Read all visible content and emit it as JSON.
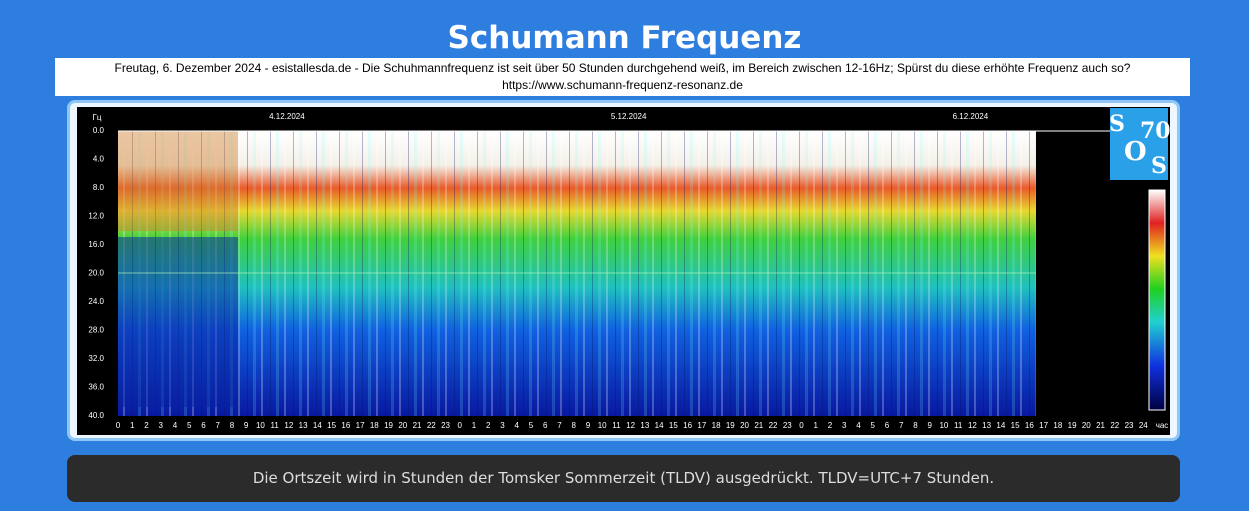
{
  "header": {
    "title": "Schumann Frequenz",
    "info_line": "Freutag, 6. Dezember 2024 - esistallesda.de - Die Schuhmannfrequenz ist seit über 50 Stunden durchgehend weiß, im Bereich zwischen 12-16Hz; Spürst du diese erhöhte Frequenz auch so?",
    "url": "https://www.schumann-frequenz-resonanz.de"
  },
  "spectrogram": {
    "y_unit": "Гц",
    "y_labels": [
      "0.0",
      "4.0",
      "8.0",
      "12.0",
      "16.0",
      "20.0",
      "24.0",
      "28.0",
      "32.0",
      "36.0",
      "40.0"
    ],
    "date_labels": [
      "4.12.2024",
      "5.12.2024",
      "6.12.2024"
    ],
    "x_labels": [
      0,
      1,
      2,
      3,
      4,
      5,
      6,
      7,
      8,
      9,
      10,
      11,
      12,
      13,
      14,
      15,
      16,
      17,
      18,
      19,
      20,
      21,
      22,
      23,
      0,
      1,
      2,
      3,
      4,
      5,
      6,
      7,
      8,
      9,
      10,
      11,
      12,
      13,
      14,
      15,
      16,
      17,
      18,
      19,
      20,
      21,
      22,
      23,
      0,
      1,
      2,
      3,
      4,
      5,
      6,
      7,
      8,
      9,
      10,
      11,
      12,
      13,
      14,
      15,
      16,
      17,
      18,
      19,
      20,
      21,
      22,
      23,
      24
    ],
    "x_unit": "час",
    "logo": [
      "S",
      "70",
      "O",
      "S"
    ]
  },
  "footer": {
    "note": "Die Ortszeit wird in Stunden der Tomsker Sommerzeit (TLDV) ausgedrückt. TLDV=UTC+7 Stunden."
  }
}
